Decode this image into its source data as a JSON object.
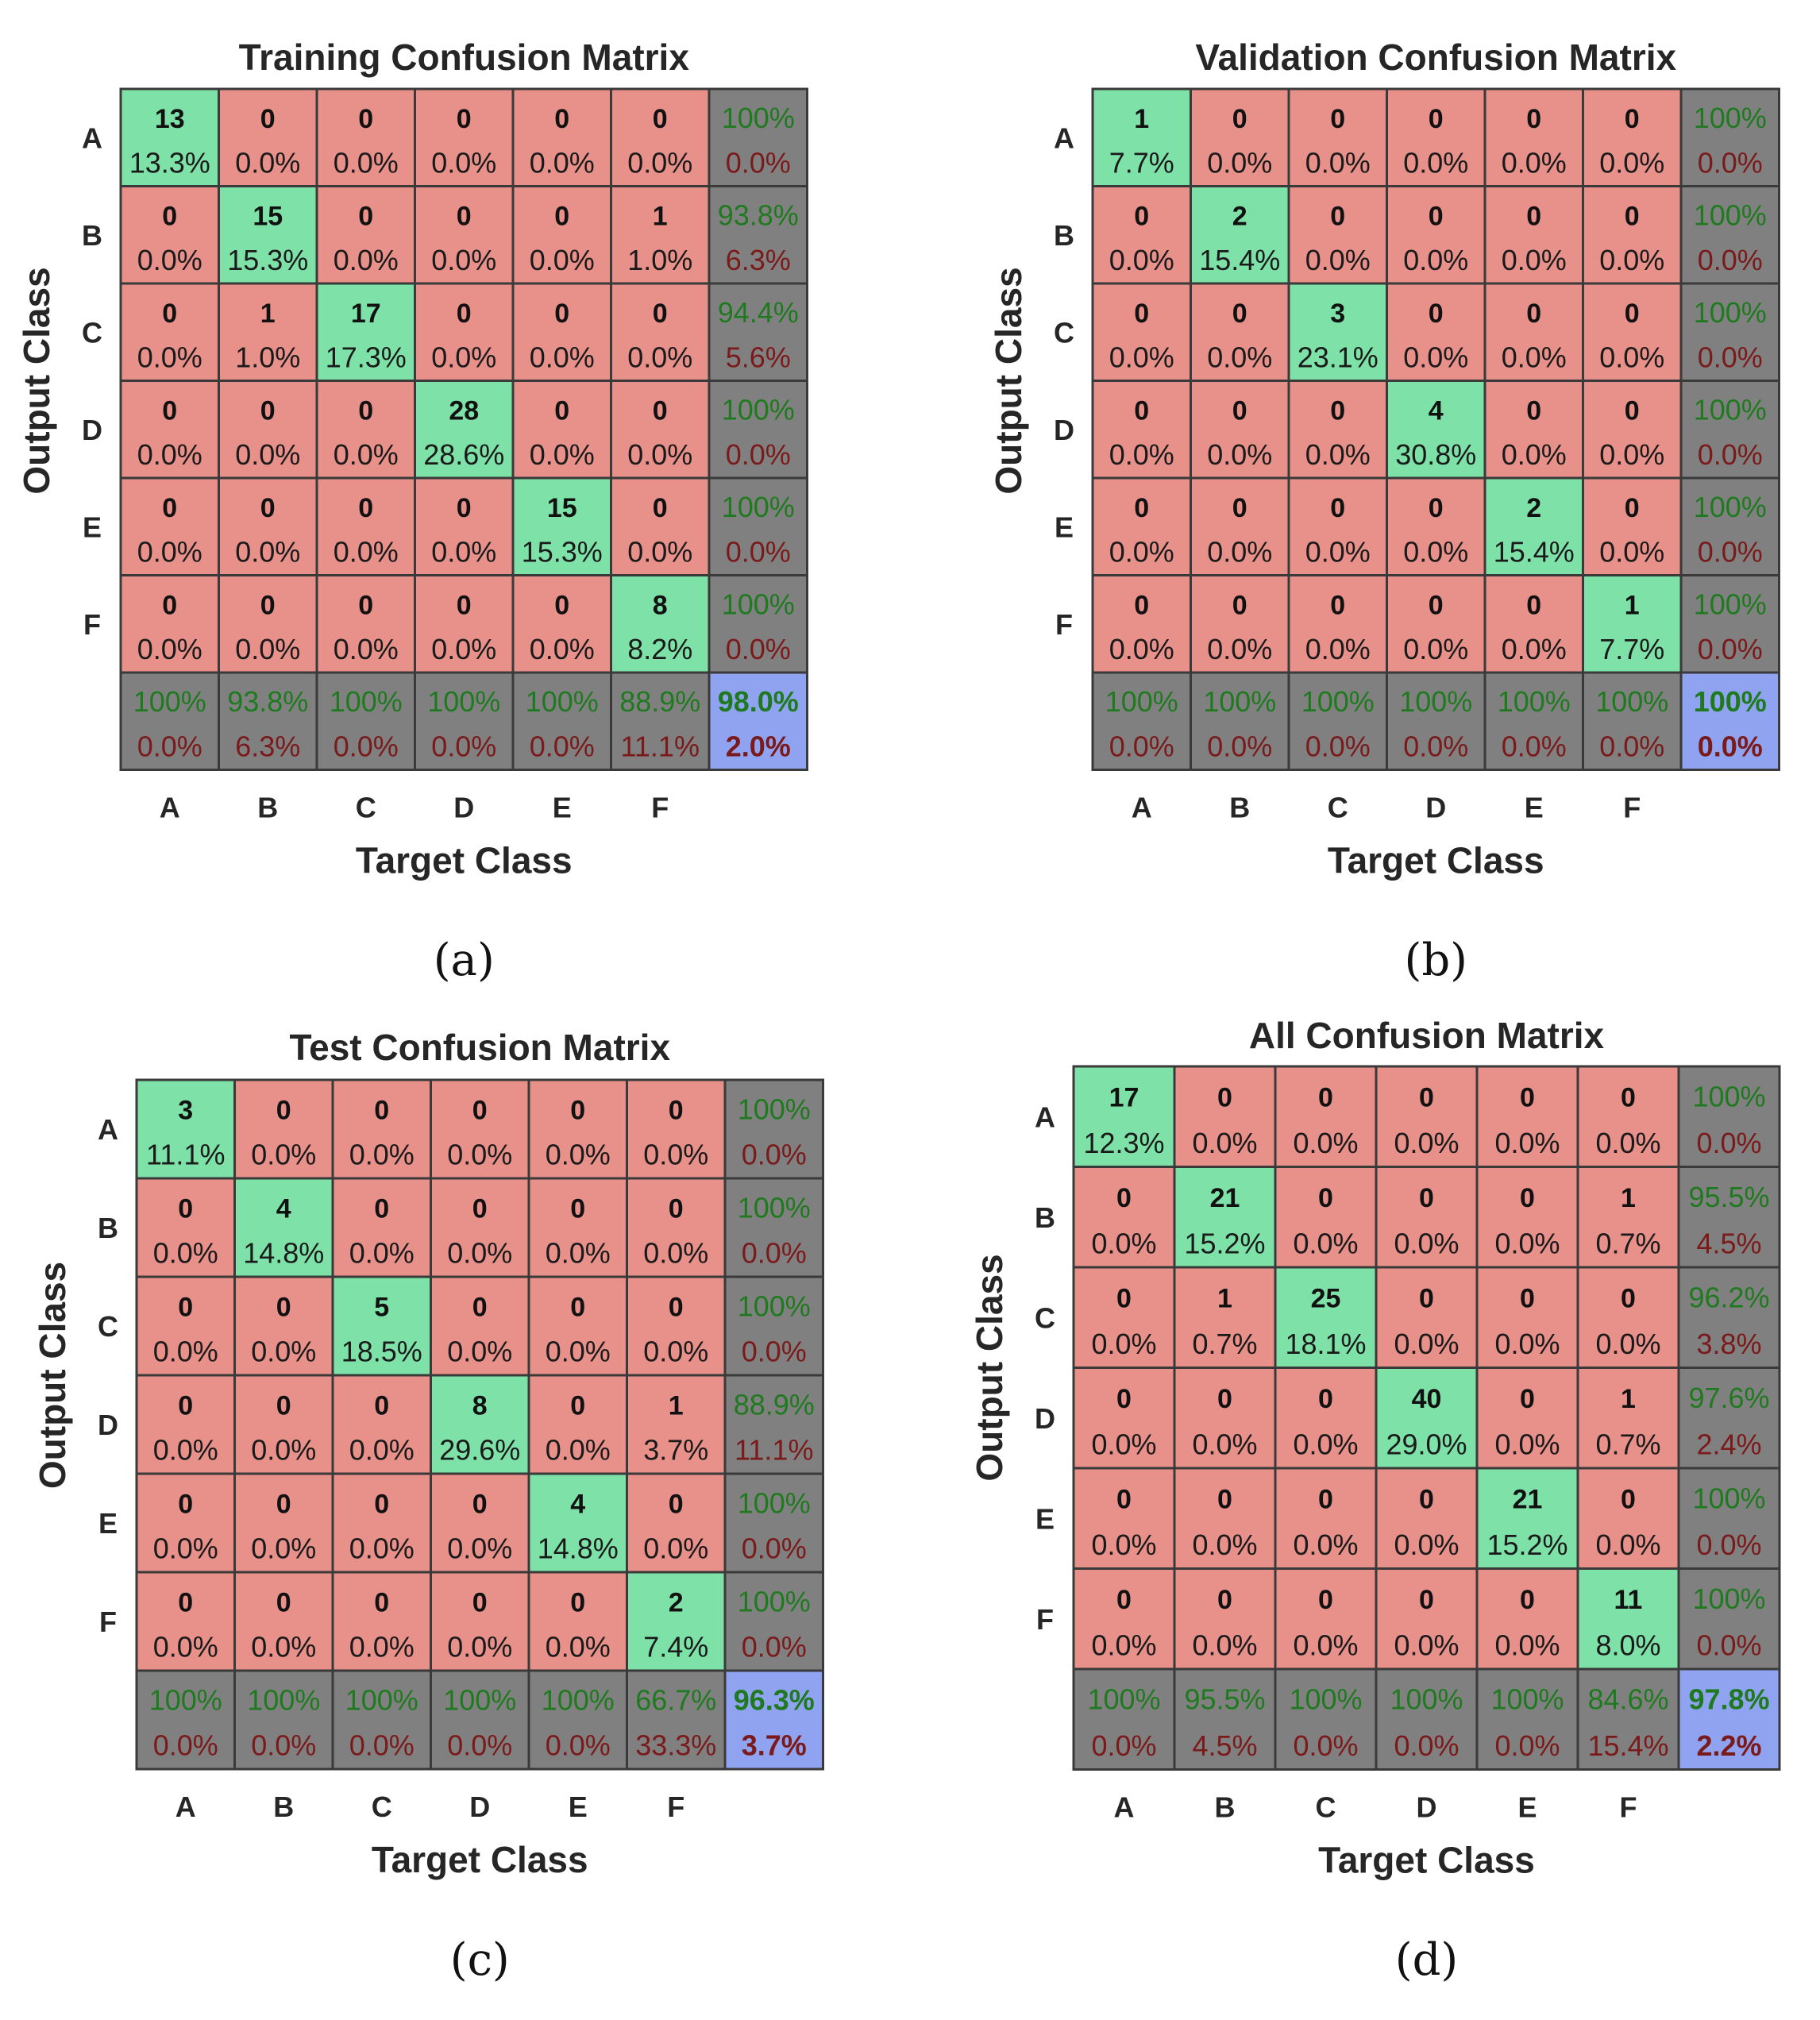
{
  "colors": {
    "correct": "#7ee2a8",
    "incorrect": "#e8908a",
    "summary": "#808080",
    "overall": "#8fa3f0",
    "good_text": "#1f7a1f",
    "bad_text": "#7a1a1a"
  },
  "chart_data": [
    {
      "type": "heatmap",
      "title": "Training Confusion Matrix",
      "xlabel": "Target Class",
      "ylabel": "Output Class",
      "subfigure_label": "(a)",
      "classes": [
        "A",
        "B",
        "C",
        "D",
        "E",
        "F"
      ],
      "counts": [
        [
          13,
          0,
          0,
          0,
          0,
          0
        ],
        [
          0,
          15,
          0,
          0,
          0,
          1
        ],
        [
          0,
          1,
          17,
          0,
          0,
          0
        ],
        [
          0,
          0,
          0,
          28,
          0,
          0
        ],
        [
          0,
          0,
          0,
          0,
          15,
          0
        ],
        [
          0,
          0,
          0,
          0,
          0,
          8
        ]
      ],
      "percents": [
        [
          "13.3%",
          "0.0%",
          "0.0%",
          "0.0%",
          "0.0%",
          "0.0%"
        ],
        [
          "0.0%",
          "15.3%",
          "0.0%",
          "0.0%",
          "0.0%",
          "1.0%"
        ],
        [
          "0.0%",
          "1.0%",
          "17.3%",
          "0.0%",
          "0.0%",
          "0.0%"
        ],
        [
          "0.0%",
          "0.0%",
          "0.0%",
          "28.6%",
          "0.0%",
          "0.0%"
        ],
        [
          "0.0%",
          "0.0%",
          "0.0%",
          "0.0%",
          "15.3%",
          "0.0%"
        ],
        [
          "0.0%",
          "0.0%",
          "0.0%",
          "0.0%",
          "0.0%",
          "8.2%"
        ]
      ],
      "row_summary": [
        [
          "100%",
          "0.0%"
        ],
        [
          "93.8%",
          "6.3%"
        ],
        [
          "94.4%",
          "5.6%"
        ],
        [
          "100%",
          "0.0%"
        ],
        [
          "100%",
          "0.0%"
        ],
        [
          "100%",
          "0.0%"
        ]
      ],
      "col_summary": [
        [
          "100%",
          "0.0%"
        ],
        [
          "93.8%",
          "6.3%"
        ],
        [
          "100%",
          "0.0%"
        ],
        [
          "100%",
          "0.0%"
        ],
        [
          "100%",
          "0.0%"
        ],
        [
          "88.9%",
          "11.1%"
        ]
      ],
      "overall": [
        "98.0%",
        "2.0%"
      ]
    },
    {
      "type": "heatmap",
      "title": "Validation Confusion Matrix",
      "xlabel": "Target Class",
      "ylabel": "Output Class",
      "subfigure_label": "(b)",
      "classes": [
        "A",
        "B",
        "C",
        "D",
        "E",
        "F"
      ],
      "counts": [
        [
          1,
          0,
          0,
          0,
          0,
          0
        ],
        [
          0,
          2,
          0,
          0,
          0,
          0
        ],
        [
          0,
          0,
          3,
          0,
          0,
          0
        ],
        [
          0,
          0,
          0,
          4,
          0,
          0
        ],
        [
          0,
          0,
          0,
          0,
          2,
          0
        ],
        [
          0,
          0,
          0,
          0,
          0,
          1
        ]
      ],
      "percents": [
        [
          "7.7%",
          "0.0%",
          "0.0%",
          "0.0%",
          "0.0%",
          "0.0%"
        ],
        [
          "0.0%",
          "15.4%",
          "0.0%",
          "0.0%",
          "0.0%",
          "0.0%"
        ],
        [
          "0.0%",
          "0.0%",
          "23.1%",
          "0.0%",
          "0.0%",
          "0.0%"
        ],
        [
          "0.0%",
          "0.0%",
          "0.0%",
          "30.8%",
          "0.0%",
          "0.0%"
        ],
        [
          "0.0%",
          "0.0%",
          "0.0%",
          "0.0%",
          "15.4%",
          "0.0%"
        ],
        [
          "0.0%",
          "0.0%",
          "0.0%",
          "0.0%",
          "0.0%",
          "7.7%"
        ]
      ],
      "row_summary": [
        [
          "100%",
          "0.0%"
        ],
        [
          "100%",
          "0.0%"
        ],
        [
          "100%",
          "0.0%"
        ],
        [
          "100%",
          "0.0%"
        ],
        [
          "100%",
          "0.0%"
        ],
        [
          "100%",
          "0.0%"
        ]
      ],
      "col_summary": [
        [
          "100%",
          "0.0%"
        ],
        [
          "100%",
          "0.0%"
        ],
        [
          "100%",
          "0.0%"
        ],
        [
          "100%",
          "0.0%"
        ],
        [
          "100%",
          "0.0%"
        ],
        [
          "100%",
          "0.0%"
        ]
      ],
      "overall": [
        "100%",
        "0.0%"
      ]
    },
    {
      "type": "heatmap",
      "title": "Test Confusion Matrix",
      "xlabel": "Target Class",
      "ylabel": "Output Class",
      "subfigure_label": "(c)",
      "classes": [
        "A",
        "B",
        "C",
        "D",
        "E",
        "F"
      ],
      "counts": [
        [
          3,
          0,
          0,
          0,
          0,
          0
        ],
        [
          0,
          4,
          0,
          0,
          0,
          0
        ],
        [
          0,
          0,
          5,
          0,
          0,
          0
        ],
        [
          0,
          0,
          0,
          8,
          0,
          1
        ],
        [
          0,
          0,
          0,
          0,
          4,
          0
        ],
        [
          0,
          0,
          0,
          0,
          0,
          2
        ]
      ],
      "percents": [
        [
          "11.1%",
          "0.0%",
          "0.0%",
          "0.0%",
          "0.0%",
          "0.0%"
        ],
        [
          "0.0%",
          "14.8%",
          "0.0%",
          "0.0%",
          "0.0%",
          "0.0%"
        ],
        [
          "0.0%",
          "0.0%",
          "18.5%",
          "0.0%",
          "0.0%",
          "0.0%"
        ],
        [
          "0.0%",
          "0.0%",
          "0.0%",
          "29.6%",
          "0.0%",
          "3.7%"
        ],
        [
          "0.0%",
          "0.0%",
          "0.0%",
          "0.0%",
          "14.8%",
          "0.0%"
        ],
        [
          "0.0%",
          "0.0%",
          "0.0%",
          "0.0%",
          "0.0%",
          "7.4%"
        ]
      ],
      "row_summary": [
        [
          "100%",
          "0.0%"
        ],
        [
          "100%",
          "0.0%"
        ],
        [
          "100%",
          "0.0%"
        ],
        [
          "88.9%",
          "11.1%"
        ],
        [
          "100%",
          "0.0%"
        ],
        [
          "100%",
          "0.0%"
        ]
      ],
      "col_summary": [
        [
          "100%",
          "0.0%"
        ],
        [
          "100%",
          "0.0%"
        ],
        [
          "100%",
          "0.0%"
        ],
        [
          "100%",
          "0.0%"
        ],
        [
          "100%",
          "0.0%"
        ],
        [
          "66.7%",
          "33.3%"
        ]
      ],
      "overall": [
        "96.3%",
        "3.7%"
      ]
    },
    {
      "type": "heatmap",
      "title": "All Confusion Matrix",
      "xlabel": "Target Class",
      "ylabel": "Output Class",
      "subfigure_label": "(d)",
      "classes": [
        "A",
        "B",
        "C",
        "D",
        "E",
        "F"
      ],
      "counts": [
        [
          17,
          0,
          0,
          0,
          0,
          0
        ],
        [
          0,
          21,
          0,
          0,
          0,
          1
        ],
        [
          0,
          1,
          25,
          0,
          0,
          0
        ],
        [
          0,
          0,
          0,
          40,
          0,
          1
        ],
        [
          0,
          0,
          0,
          0,
          21,
          0
        ],
        [
          0,
          0,
          0,
          0,
          0,
          11
        ]
      ],
      "percents": [
        [
          "12.3%",
          "0.0%",
          "0.0%",
          "0.0%",
          "0.0%",
          "0.0%"
        ],
        [
          "0.0%",
          "15.2%",
          "0.0%",
          "0.0%",
          "0.0%",
          "0.7%"
        ],
        [
          "0.0%",
          "0.7%",
          "18.1%",
          "0.0%",
          "0.0%",
          "0.0%"
        ],
        [
          "0.0%",
          "0.0%",
          "0.0%",
          "29.0%",
          "0.0%",
          "0.7%"
        ],
        [
          "0.0%",
          "0.0%",
          "0.0%",
          "0.0%",
          "15.2%",
          "0.0%"
        ],
        [
          "0.0%",
          "0.0%",
          "0.0%",
          "0.0%",
          "0.0%",
          "8.0%"
        ]
      ],
      "row_summary": [
        [
          "100%",
          "0.0%"
        ],
        [
          "95.5%",
          "4.5%"
        ],
        [
          "96.2%",
          "3.8%"
        ],
        [
          "97.6%",
          "2.4%"
        ],
        [
          "100%",
          "0.0%"
        ],
        [
          "100%",
          "0.0%"
        ]
      ],
      "col_summary": [
        [
          "100%",
          "0.0%"
        ],
        [
          "95.5%",
          "4.5%"
        ],
        [
          "100%",
          "0.0%"
        ],
        [
          "100%",
          "0.0%"
        ],
        [
          "100%",
          "0.0%"
        ],
        [
          "84.6%",
          "15.4%"
        ]
      ],
      "overall": [
        "97.8%",
        "2.2%"
      ]
    }
  ]
}
